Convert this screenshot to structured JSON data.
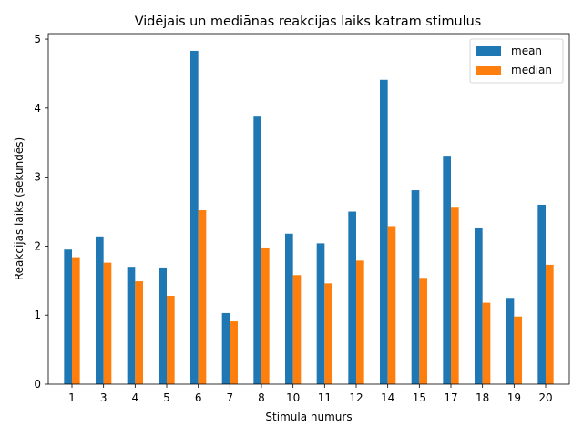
{
  "chart_data": {
    "type": "bar",
    "title": "Vidējais un mediānas reakcijas laiks katram stimulus",
    "xlabel": "Stimula numurs",
    "ylabel": "Reakcijas laiks (sekundēs)",
    "ylim": [
      0,
      5.08
    ],
    "yticks": [
      0,
      1,
      2,
      3,
      4,
      5
    ],
    "categories": [
      "1",
      "3",
      "4",
      "5",
      "6",
      "7",
      "8",
      "10",
      "11",
      "12",
      "14",
      "15",
      "17",
      "18",
      "19",
      "20"
    ],
    "series": [
      {
        "name": "mean",
        "color": "#1f77b4",
        "values": [
          1.95,
          2.14,
          1.7,
          1.69,
          4.83,
          1.03,
          3.89,
          2.18,
          2.04,
          2.5,
          4.41,
          2.81,
          3.31,
          2.27,
          1.25,
          2.6
        ]
      },
      {
        "name": "median",
        "color": "#ff7f0e",
        "values": [
          1.84,
          1.76,
          1.49,
          1.28,
          2.52,
          0.91,
          1.98,
          1.58,
          1.46,
          1.79,
          2.29,
          1.54,
          2.57,
          1.18,
          0.98,
          1.73
        ]
      }
    ],
    "grid": false,
    "legend": "top-right"
  }
}
